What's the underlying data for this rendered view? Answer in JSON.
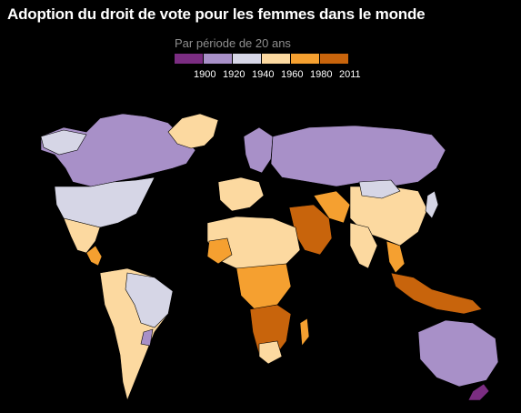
{
  "title": "Adoption du droit de vote pour les femmes dans le monde",
  "legend": {
    "subtitle": "Par période de 20 ans",
    "items": [
      {
        "label": "1900",
        "color": "#7b2d82"
      },
      {
        "label": "1920",
        "color": "#a890c8"
      },
      {
        "label": "1940",
        "color": "#d6d6e6"
      },
      {
        "label": "1960",
        "color": "#fcd9a0"
      },
      {
        "label": "1980",
        "color": "#f5a030"
      },
      {
        "label": "2011",
        "color": "#c8640c"
      }
    ]
  }
}
